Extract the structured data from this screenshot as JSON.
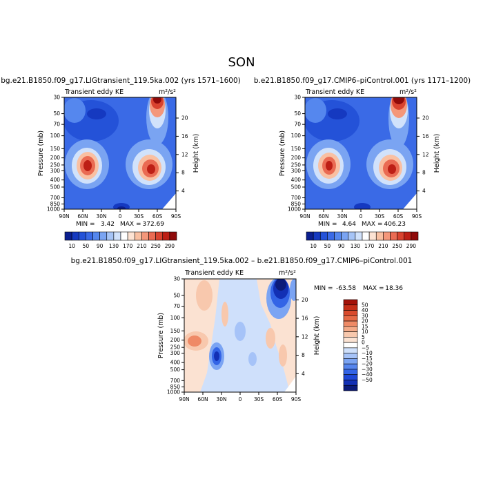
{
  "season": "SON",
  "colors": {
    "top_scale": [
      "#0b1f8f",
      "#1539c0",
      "#2452d8",
      "#3a6ae6",
      "#5587ee",
      "#7aa4f2",
      "#a6c4f6",
      "#d1e2fb",
      "#ffffff",
      "#fde3d3",
      "#f9c0a2",
      "#f4977a",
      "#ea6b53",
      "#d9432f",
      "#bd1f15",
      "#8f0a0a"
    ],
    "diff_scale": [
      "#0b1b7a",
      "#1230b5",
      "#1e47d6",
      "#3364e6",
      "#5585ee",
      "#7ba4f3",
      "#a6c3f8",
      "#cfe0fb",
      "#ffffff",
      "#fbe2d2",
      "#f8c8ad",
      "#f4aa88",
      "#ef8a66",
      "#e66a46",
      "#d94a2c",
      "#c52d17",
      "#a31108"
    ]
  },
  "chart_data": [
    {
      "id": "panel-lig",
      "type": "heatmap",
      "title": "bg.e21.B1850.f09_g17.LIGtransient_119.5ka.002 (yrs 1571–1600)",
      "left_string": "Transient eddy KE",
      "units": "m²/s²",
      "ylabel": "Pressure (mb)",
      "ylabel_right": "Height (km)",
      "x_ticks": [
        "90N",
        "60N",
        "30N",
        "0",
        "30S",
        "60S",
        "90S"
      ],
      "y_ticks": [
        "30",
        "50",
        "70",
        "100",
        "150",
        "200",
        "250",
        "300",
        "400",
        "500",
        "700",
        "850",
        "1000"
      ],
      "height_ticks": [
        "20",
        "16",
        "12",
        "8",
        "4"
      ],
      "min_label": "MIN =",
      "min_value": "3.42",
      "max_label": "MAX =",
      "max_value": "372.69",
      "colorbar_labels": [
        "10",
        "50",
        "90",
        "130",
        "170",
        "210",
        "250",
        "290"
      ],
      "features": [
        {
          "lat": 45,
          "p": 250,
          "value": 320
        },
        {
          "lat": -45,
          "p": 250,
          "value": 300
        },
        {
          "lat": -60,
          "p": 30,
          "value": 372
        },
        {
          "lat": 60,
          "p": 50,
          "value": 20
        },
        {
          "lat": 10,
          "p": 1000,
          "value": 3
        }
      ]
    },
    {
      "id": "panel-ctrl",
      "type": "heatmap",
      "title": "b.e21.B1850.f09_g17.CMIP6–piControl.001 (yrs 1171–1200)",
      "left_string": "Transient eddy KE",
      "units": "m²/s²",
      "ylabel": "Pressure (mb)",
      "ylabel_right": "Height (km)",
      "x_ticks": [
        "90N",
        "60N",
        "30N",
        "0",
        "30S",
        "60S",
        "90S"
      ],
      "y_ticks": [
        "30",
        "50",
        "70",
        "100",
        "150",
        "200",
        "250",
        "300",
        "400",
        "500",
        "700",
        "850",
        "1000"
      ],
      "height_ticks": [
        "20",
        "16",
        "12",
        "8",
        "4"
      ],
      "min_label": "MIN =",
      "min_value": "4.64",
      "max_label": "MAX =",
      "max_value": "406.23",
      "colorbar_labels": [
        "10",
        "50",
        "90",
        "130",
        "170",
        "210",
        "250",
        "290"
      ],
      "features": [
        {
          "lat": 45,
          "p": 250,
          "value": 300
        },
        {
          "lat": -45,
          "p": 250,
          "value": 310
        },
        {
          "lat": -60,
          "p": 30,
          "value": 406
        },
        {
          "lat": 60,
          "p": 50,
          "value": 20
        },
        {
          "lat": 10,
          "p": 1000,
          "value": 5
        }
      ]
    },
    {
      "id": "panel-diff",
      "type": "heatmap",
      "title": "bg.e21.B1850.f09_g17.LIGtransient_119.5ka.002 – b.e21.B1850.f09_g17.CMIP6–piControl.001",
      "left_string": "Transient eddy KE",
      "units": "m²/s²",
      "ylabel": "Pressure (mb)",
      "ylabel_right": "Height (km)",
      "x_ticks": [
        "90N",
        "60N",
        "30N",
        "0",
        "30S",
        "60S",
        "90S"
      ],
      "y_ticks": [
        "30",
        "50",
        "70",
        "100",
        "150",
        "200",
        "250",
        "300",
        "400",
        "500",
        "700",
        "850",
        "1000"
      ],
      "height_ticks": [
        "20",
        "16",
        "12",
        "8",
        "4"
      ],
      "min_label": "MIN =",
      "min_value": "-63.58",
      "max_label": "MAX =",
      "max_value": "18.36",
      "colorbar_labels": [
        "50",
        "40",
        "30",
        "20",
        "15",
        "10",
        "5",
        "0",
        "−5",
        "−10",
        "−15",
        "−20",
        "−30",
        "−40",
        "−50"
      ],
      "features": [
        {
          "lat": -65,
          "p": 30,
          "value": -63.58
        },
        {
          "lat": 75,
          "p": 230,
          "value": 18
        },
        {
          "lat": 30,
          "p": 300,
          "value": -30
        },
        {
          "lat": 50,
          "p": 50,
          "value": 10
        },
        {
          "lat": -70,
          "p": 300,
          "value": 10
        }
      ]
    }
  ]
}
